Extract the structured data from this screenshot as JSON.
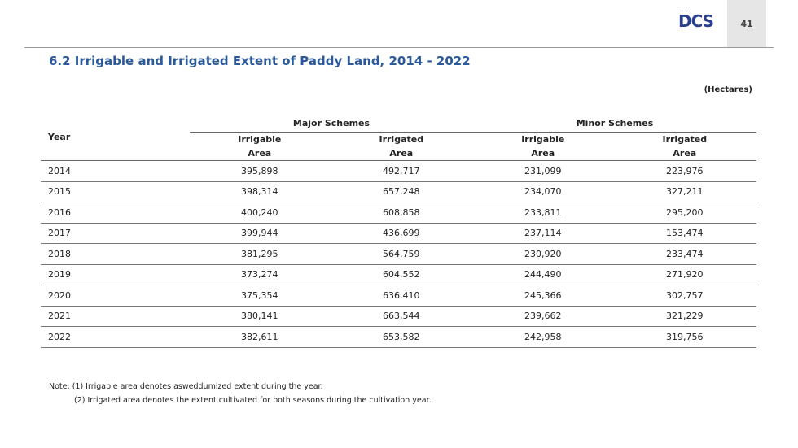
{
  "header": {
    "logo_text": "DCS",
    "logo_dots": "····",
    "page_number": "41"
  },
  "title": "6.2 Irrigable and Irrigated Extent of Paddy Land, 2014 - 2022",
  "units": "(Hectares)",
  "table": {
    "year_header": "Year",
    "group_major": "Major Schemes",
    "group_minor": "Minor Schemes",
    "sub_irrigable_1": "Irrigable",
    "sub_irrigated_1": "Irrigated",
    "sub_area": "Area",
    "rows": [
      {
        "year": "2014",
        "major_irrigable": "395,898",
        "major_irrigated": "492,717",
        "minor_irrigable": "231,099",
        "minor_irrigated": "223,976"
      },
      {
        "year": "2015",
        "major_irrigable": "398,314",
        "major_irrigated": "657,248",
        "minor_irrigable": "234,070",
        "minor_irrigated": "327,211"
      },
      {
        "year": "2016",
        "major_irrigable": "400,240",
        "major_irrigated": "608,858",
        "minor_irrigable": "233,811",
        "minor_irrigated": "295,200"
      },
      {
        "year": "2017",
        "major_irrigable": "399,944",
        "major_irrigated": "436,699",
        "minor_irrigable": "237,114",
        "minor_irrigated": "153,474"
      },
      {
        "year": "2018",
        "major_irrigable": "381,295",
        "major_irrigated": "564,759",
        "minor_irrigable": "230,920",
        "minor_irrigated": "233,474"
      },
      {
        "year": "2019",
        "major_irrigable": "373,274",
        "major_irrigated": "604,552",
        "minor_irrigable": "244,490",
        "minor_irrigated": "271,920"
      },
      {
        "year": "2020",
        "major_irrigable": "375,354",
        "major_irrigated": "636,410",
        "minor_irrigable": "245,366",
        "minor_irrigated": "302,757"
      },
      {
        "year": "2021",
        "major_irrigable": "380,141",
        "major_irrigated": "663,544",
        "minor_irrigable": "239,662",
        "minor_irrigated": "321,229"
      },
      {
        "year": "2022",
        "major_irrigable": "382,611",
        "major_irrigated": "653,582",
        "minor_irrigable": "242,958",
        "minor_irrigated": "319,756"
      }
    ]
  },
  "notes": {
    "note1": "Note: (1) Irrigable area denotes asweddumized extent during the year.",
    "note2": "(2) Irrigated area denotes the extent cultivated for both seasons during the cultivation year."
  }
}
